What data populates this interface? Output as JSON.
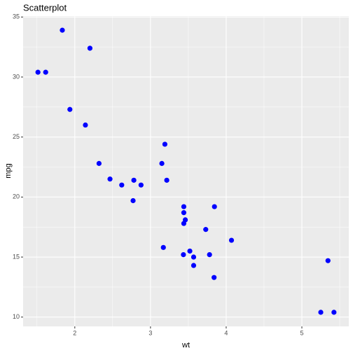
{
  "chart_data": {
    "type": "scatter",
    "title": "Scatterplot",
    "x_label": "wt",
    "y_label": "mpg",
    "x": [
      2.62,
      2.875,
      2.32,
      3.215,
      3.44,
      3.46,
      3.57,
      3.19,
      3.15,
      3.44,
      3.44,
      4.07,
      3.73,
      3.78,
      5.25,
      5.424,
      5.345,
      2.2,
      1.615,
      1.835,
      2.465,
      3.52,
      3.435,
      3.84,
      3.845,
      1.935,
      2.14,
      1.513,
      3.17,
      2.77,
      3.57,
      2.78
    ],
    "y": [
      21.0,
      21.0,
      22.8,
      21.4,
      18.7,
      18.1,
      14.3,
      24.4,
      22.8,
      19.2,
      17.8,
      16.4,
      17.3,
      15.2,
      10.4,
      10.4,
      14.7,
      32.4,
      30.4,
      33.9,
      21.5,
      15.5,
      15.2,
      13.3,
      19.2,
      27.3,
      26.0,
      30.4,
      15.8,
      19.7,
      15.0,
      21.4
    ],
    "color": "#0000ff",
    "xlim": [
      1.317,
      5.62
    ],
    "xticks": [
      2,
      3,
      4,
      5
    ],
    "x_minor_breaks": [
      1.5,
      2.5,
      3.5,
      4.5,
      5.5
    ],
    "ylim": [
      9.225,
      35.075
    ],
    "yticks": [
      10,
      15,
      20,
      25,
      30,
      35
    ],
    "y_minor_breaks": [
      12.5,
      17.5,
      22.5,
      27.5,
      32.5
    ],
    "grid": true
  }
}
